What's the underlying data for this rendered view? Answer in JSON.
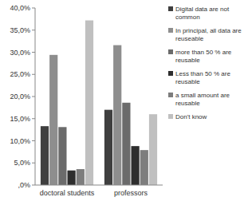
{
  "chart_data": {
    "type": "bar",
    "categories": [
      "doctoral students",
      "professors"
    ],
    "series": [
      {
        "name": "Digital data are not common",
        "color": "#3f3f3f",
        "values": [
          13.3,
          17.0
        ]
      },
      {
        "name": "In principal, all data are reuseable",
        "color": "#8e8e8e",
        "values": [
          29.4,
          31.6
        ]
      },
      {
        "name": "more than 50 % are reusable",
        "color": "#6b6b6b",
        "values": [
          13.1,
          18.6
        ]
      },
      {
        "name": "Less than 50 % are reusable",
        "color": "#2e2e2e",
        "values": [
          3.3,
          8.8
        ]
      },
      {
        "name": "a small amount are reusable",
        "color": "#7d7d7d",
        "values": [
          3.6,
          7.9
        ]
      },
      {
        "name": "Don't know",
        "color": "#c0c0c0",
        "values": [
          37.2,
          16.0
        ]
      }
    ],
    "ylim": [
      0,
      40
    ],
    "yticks": [
      {
        "value": 0,
        "label": ",0%"
      },
      {
        "value": 5,
        "label": "5,0%"
      },
      {
        "value": 10,
        "label": "10,0%"
      },
      {
        "value": 15,
        "label": "15,0%"
      },
      {
        "value": 20,
        "label": "20,0%"
      },
      {
        "value": 25,
        "label": "25,0%"
      },
      {
        "value": 30,
        "label": "30,0%"
      },
      {
        "value": 35,
        "label": "35,0%"
      },
      {
        "value": 40,
        "label": "40,0%"
      }
    ],
    "grid": false,
    "legend": "right"
  }
}
